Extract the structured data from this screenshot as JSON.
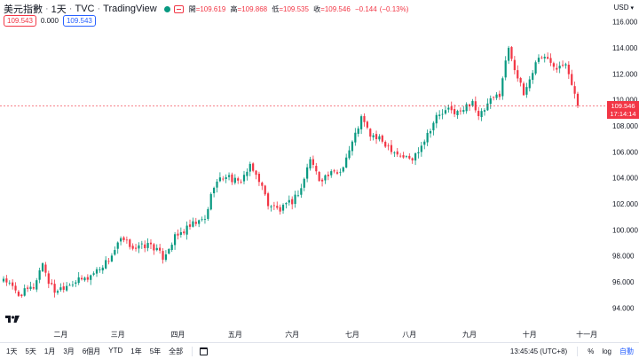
{
  "header": {
    "symbol": "美元指數",
    "interval": "1天",
    "exchange": "TVC",
    "provider": "TradingView",
    "sep": "·",
    "ohlc": {
      "open_label": "開",
      "open": "=109.619",
      "high_label": "高",
      "high": "=109.868",
      "low_label": "低",
      "low": "=109.535",
      "close_label": "收",
      "close": "=109.546",
      "change": "−0.144",
      "change_pct": "(−0.13%)"
    },
    "status_color": "#089981"
  },
  "badges": {
    "bid": "109.543",
    "spread": "0.000",
    "ask": "109.543"
  },
  "currency": "USD",
  "last_price": {
    "value": "109.546",
    "countdown": "17:14:14",
    "color": "#f23645"
  },
  "toolbar": {
    "ranges": [
      "1天",
      "5天",
      "1月",
      "3月",
      "6個月",
      "YTD",
      "1年",
      "5年",
      "全部"
    ],
    "time": "13:45:45 (UTC+8)",
    "percent": "%",
    "log": "log",
    "auto": "自動",
    "calendar_icon": "calendar-icon"
  },
  "logo_icon": "tradingview-logo-icon",
  "chart_data": {
    "type": "candlestick",
    "title": "",
    "xlabel": "",
    "ylabel": "",
    "ylim": [
      93,
      117
    ],
    "yticks": [
      "94.000",
      "96.000",
      "98.000",
      "100.000",
      "102.000",
      "104.000",
      "106.000",
      "108.000",
      "110.000",
      "112.000",
      "114.000",
      "116.000"
    ],
    "ytick_values": [
      94,
      96,
      98,
      100,
      102,
      104,
      106,
      108,
      110,
      112,
      114,
      116
    ],
    "xticks": [
      "二月",
      "三月",
      "四月",
      "五月",
      "六月",
      "七月",
      "八月",
      "九月",
      "十月",
      "十一月"
    ],
    "xtick_index": [
      19,
      38,
      58,
      77,
      96,
      116,
      135,
      155,
      175,
      194
    ],
    "up_color": "#089981",
    "down_color": "#f23645",
    "anchors": [
      [
        0,
        96.3
      ],
      [
        5,
        95.0
      ],
      [
        10,
        95.6
      ],
      [
        13,
        97.5
      ],
      [
        15,
        96.0
      ],
      [
        17,
        95.3
      ],
      [
        22,
        95.9
      ],
      [
        28,
        96.3
      ],
      [
        35,
        97.7
      ],
      [
        39,
        99.2
      ],
      [
        44,
        98.6
      ],
      [
        49,
        98.9
      ],
      [
        53,
        97.9
      ],
      [
        57,
        99.4
      ],
      [
        63,
        100.4
      ],
      [
        67,
        100.8
      ],
      [
        70,
        103.5
      ],
      [
        74,
        104.2
      ],
      [
        78,
        103.6
      ],
      [
        82,
        104.8
      ],
      [
        85,
        103.9
      ],
      [
        88,
        102.0
      ],
      [
        92,
        101.5
      ],
      [
        96,
        102.2
      ],
      [
        99,
        103.2
      ],
      [
        102,
        105.5
      ],
      [
        105,
        103.9
      ],
      [
        108,
        104.2
      ],
      [
        112,
        104.5
      ],
      [
        116,
        106.7
      ],
      [
        119,
        108.6
      ],
      [
        122,
        107.3
      ],
      [
        126,
        106.8
      ],
      [
        132,
        105.7
      ],
      [
        136,
        105.4
      ],
      [
        140,
        107.0
      ],
      [
        144,
        108.7
      ],
      [
        148,
        109.2
      ],
      [
        152,
        109.0
      ],
      [
        156,
        110.0
      ],
      [
        158,
        108.6
      ],
      [
        162,
        109.9
      ],
      [
        165,
        110.5
      ],
      [
        168,
        114.1
      ],
      [
        171,
        111.7
      ],
      [
        173,
        110.4
      ],
      [
        175,
        111.6
      ],
      [
        178,
        113.4
      ],
      [
        181,
        113.1
      ],
      [
        184,
        112.6
      ],
      [
        187,
        113.0
      ],
      [
        189,
        111.3
      ],
      [
        191,
        109.55
      ]
    ]
  }
}
